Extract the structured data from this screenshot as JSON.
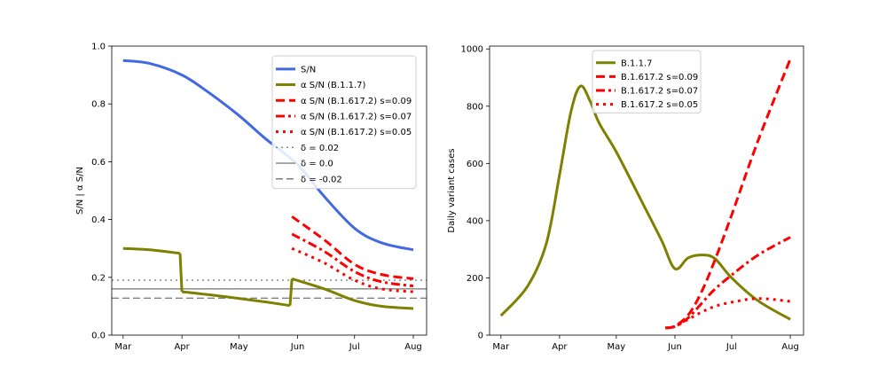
{
  "chart_data": [
    {
      "type": "line",
      "title": "",
      "xlabel": "",
      "ylabel": "S/N | α S/N",
      "xlim": [
        "2021-02-23",
        "2021-08-08"
      ],
      "ylim": [
        0,
        1.0
      ],
      "x_ticks": [
        {
          "date": "2021-03-01",
          "label": "Mar"
        },
        {
          "date": "2021-04-01",
          "label": "Apr"
        },
        {
          "date": "2021-05-01",
          "label": "May"
        },
        {
          "date": "2021-06-01",
          "label": "Jun"
        },
        {
          "date": "2021-07-01",
          "label": "Jul"
        },
        {
          "date": "2021-08-01",
          "label": "Aug"
        }
      ],
      "y_ticks": [
        "0.0",
        "0.2",
        "0.4",
        "0.6",
        "0.8",
        "1.0"
      ],
      "legend_position": "top-right",
      "series": [
        {
          "name": "S/N",
          "color": "#4169e1",
          "dash": "solid",
          "x": [
            "2021-03-01",
            "2021-03-15",
            "2021-04-01",
            "2021-04-15",
            "2021-05-01",
            "2021-05-15",
            "2021-06-01",
            "2021-06-15",
            "2021-07-01",
            "2021-07-15",
            "2021-08-01"
          ],
          "y": [
            0.95,
            0.94,
            0.9,
            0.84,
            0.76,
            0.68,
            0.59,
            0.48,
            0.37,
            0.32,
            0.295
          ]
        },
        {
          "name": "α S/N (B.1.1.7)",
          "color": "#808000",
          "dash": "solid",
          "x": [
            "2021-03-01",
            "2021-03-15",
            "2021-03-31",
            "2021-04-01",
            "2021-04-15",
            "2021-05-01",
            "2021-05-15",
            "2021-05-28",
            "2021-05-29",
            "2021-06-15",
            "2021-07-01",
            "2021-07-15",
            "2021-08-01"
          ],
          "y": [
            0.3,
            0.295,
            0.283,
            0.15,
            0.14,
            0.127,
            0.115,
            0.102,
            0.195,
            0.16,
            0.12,
            0.1,
            0.092
          ]
        },
        {
          "name": "α S/N (B.1.617.2) s=0.09",
          "color": "#ff0000",
          "dash": "dashed",
          "x": [
            "2021-05-29",
            "2021-06-15",
            "2021-07-01",
            "2021-07-15",
            "2021-08-01"
          ],
          "y": [
            0.41,
            0.33,
            0.245,
            0.21,
            0.195
          ]
        },
        {
          "name": "α S/N (B.1.617.2) s=0.07",
          "color": "#ff0000",
          "dash": "dashdot",
          "x": [
            "2021-05-29",
            "2021-06-15",
            "2021-07-01",
            "2021-07-15",
            "2021-08-01"
          ],
          "y": [
            0.35,
            0.29,
            0.22,
            0.185,
            0.17
          ]
        },
        {
          "name": "α S/N (B.1.617.2) s=0.05",
          "color": "#ff0000",
          "dash": "dotted",
          "x": [
            "2021-05-29",
            "2021-06-15",
            "2021-07-01",
            "2021-07-15",
            "2021-08-01"
          ],
          "y": [
            0.3,
            0.25,
            0.19,
            0.16,
            0.15
          ]
        }
      ],
      "hlines": [
        {
          "name": "δ = 0.02",
          "y": 0.19,
          "color": "#808080",
          "dash": "dotted"
        },
        {
          "name": "δ = 0.0",
          "y": 0.16,
          "color": "#808080",
          "dash": "solid"
        },
        {
          "name": "δ = -0.02",
          "y": 0.128,
          "color": "#808080",
          "dash": "dashed"
        }
      ]
    },
    {
      "type": "line",
      "title": "",
      "xlabel": "",
      "ylabel": "Daily variant cases",
      "xlim": [
        "2021-02-23",
        "2021-08-08"
      ],
      "ylim": [
        0,
        1010
      ],
      "x_ticks": [
        {
          "date": "2021-03-01",
          "label": "Mar"
        },
        {
          "date": "2021-04-01",
          "label": "Apr"
        },
        {
          "date": "2021-05-01",
          "label": "May"
        },
        {
          "date": "2021-06-01",
          "label": "Jun"
        },
        {
          "date": "2021-07-01",
          "label": "Jul"
        },
        {
          "date": "2021-08-01",
          "label": "Aug"
        }
      ],
      "y_ticks": [
        "0",
        "200",
        "400",
        "600",
        "800",
        "1000"
      ],
      "legend_position": "top-center",
      "series": [
        {
          "name": "B.1.1.7",
          "color": "#808000",
          "dash": "solid",
          "x": [
            "2021-03-01",
            "2021-03-15",
            "2021-03-25",
            "2021-04-01",
            "2021-04-07",
            "2021-04-12",
            "2021-04-17",
            "2021-04-22",
            "2021-05-01",
            "2021-05-15",
            "2021-05-25",
            "2021-06-01",
            "2021-06-08",
            "2021-06-15",
            "2021-06-22",
            "2021-07-01",
            "2021-07-15",
            "2021-08-01"
          ],
          "y": [
            68,
            170,
            320,
            560,
            780,
            870,
            820,
            740,
            640,
            460,
            330,
            232,
            270,
            280,
            268,
            200,
            120,
            55
          ]
        },
        {
          "name": "B.1.617.2 s=0.09",
          "color": "#ff0000",
          "dash": "dashed",
          "x": [
            "2021-05-27",
            "2021-06-01",
            "2021-06-08",
            "2021-06-15",
            "2021-06-22",
            "2021-07-01",
            "2021-07-15",
            "2021-08-01"
          ],
          "y": [
            25,
            32,
            70,
            150,
            260,
            420,
            680,
            965
          ]
        },
        {
          "name": "B.1.617.2 s=0.07",
          "color": "#ff0000",
          "dash": "dashdot",
          "x": [
            "2021-05-27",
            "2021-06-01",
            "2021-06-08",
            "2021-06-15",
            "2021-06-22",
            "2021-07-01",
            "2021-07-15",
            "2021-08-01"
          ],
          "y": [
            25,
            30,
            60,
            110,
            160,
            210,
            280,
            342
          ]
        },
        {
          "name": "B.1.617.2 s=0.05",
          "color": "#ff0000",
          "dash": "dotted",
          "x": [
            "2021-05-27",
            "2021-06-01",
            "2021-06-08",
            "2021-06-15",
            "2021-06-22",
            "2021-07-01",
            "2021-07-15",
            "2021-08-01"
          ],
          "y": [
            25,
            30,
            55,
            80,
            100,
            115,
            128,
            118
          ]
        }
      ]
    }
  ]
}
